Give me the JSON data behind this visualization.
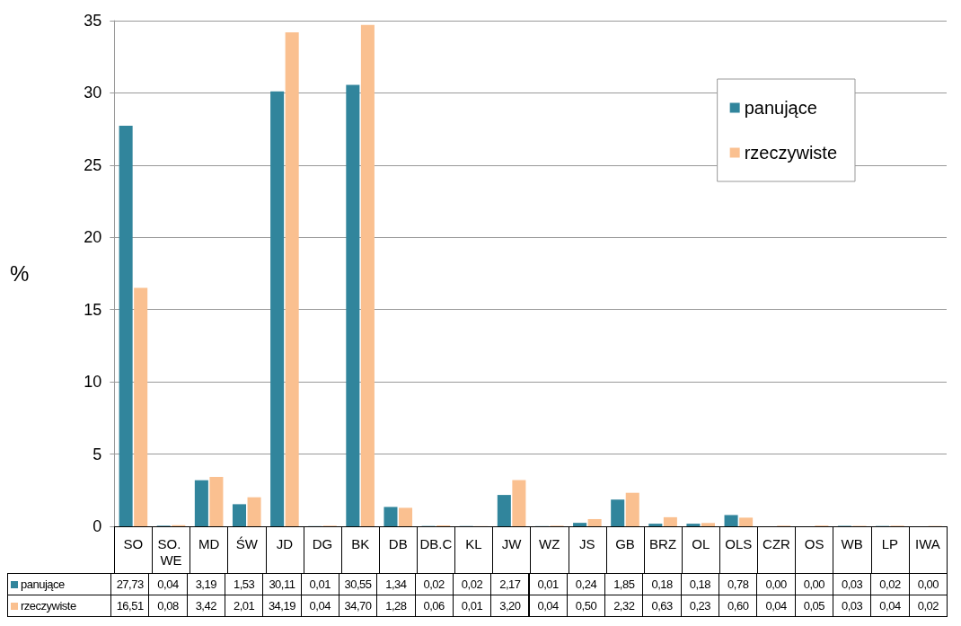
{
  "chart_data": {
    "type": "bar",
    "ylabel": "%",
    "categories": [
      "SO",
      "SO. WE",
      "MD",
      "ŚW",
      "JD",
      "DG",
      "BK",
      "DB",
      "DB.C",
      "KL",
      "JW",
      "WZ",
      "JS",
      "GB",
      "BRZ",
      "OL",
      "OLS",
      "CZR",
      "OS",
      "WB",
      "LP",
      "IWA"
    ],
    "series": [
      {
        "name": "panujące",
        "color": "#31859c",
        "values": [
          27.73,
          0.04,
          3.19,
          1.53,
          30.11,
          0.01,
          30.55,
          1.34,
          0.02,
          0.02,
          2.17,
          0.01,
          0.24,
          1.85,
          0.18,
          0.18,
          0.78,
          0.0,
          0.0,
          0.03,
          0.02,
          0.0
        ],
        "value_labels": [
          "27,73",
          "0,04",
          "3,19",
          "1,53",
          "30,11",
          "0,01",
          "30,55",
          "1,34",
          "0,02",
          "0,02",
          "2,17",
          "0,01",
          "0,24",
          "1,85",
          "0,18",
          "0,18",
          "0,78",
          "0,00",
          "0,00",
          "0,03",
          "0,02",
          "0,00"
        ]
      },
      {
        "name": "rzeczywiste",
        "color": "#fac090",
        "values": [
          16.51,
          0.08,
          3.42,
          2.01,
          34.19,
          0.04,
          34.7,
          1.28,
          0.06,
          0.01,
          3.2,
          0.04,
          0.5,
          2.32,
          0.63,
          0.23,
          0.6,
          0.04,
          0.05,
          0.03,
          0.04,
          0.02
        ],
        "value_labels": [
          "16,51",
          "0,08",
          "3,42",
          "2,01",
          "34,19",
          "0,04",
          "34,70",
          "1,28",
          "0,06",
          "0,01",
          "3,20",
          "0,04",
          "0,50",
          "2,32",
          "0,63",
          "0,23",
          "0,60",
          "0,04",
          "0,05",
          "0,03",
          "0,04",
          "0,02"
        ]
      }
    ],
    "ylim": [
      0,
      35
    ],
    "yticks": [
      0,
      5,
      10,
      15,
      20,
      25,
      30,
      35
    ],
    "grid": "y",
    "legend": "top right"
  }
}
